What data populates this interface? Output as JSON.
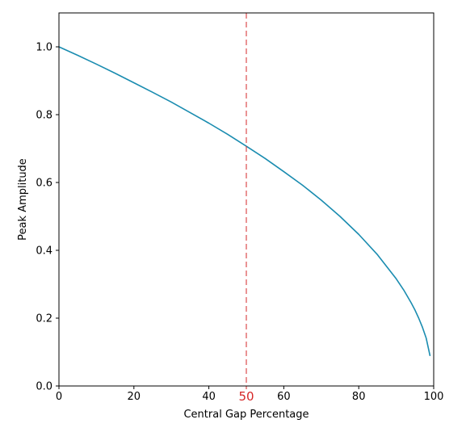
{
  "chart_data": {
    "type": "line",
    "title": "",
    "xlabel": "Central Gap Percentage",
    "ylabel": "Peak Amplitude",
    "xlim": [
      0,
      100
    ],
    "ylim": [
      0,
      1.1
    ],
    "grid": false,
    "x_ticks": [
      0,
      20,
      40,
      60,
      80,
      100
    ],
    "x_tick_labels": [
      "0",
      "20",
      "40",
      "60",
      "80",
      "100"
    ],
    "y_ticks": [
      0.0,
      0.2,
      0.4,
      0.6,
      0.8,
      1.0
    ],
    "y_tick_labels": [
      "0.0",
      "0.2",
      "0.4",
      "0.6",
      "0.8",
      "1.0"
    ],
    "series": [
      {
        "color": "#1a8cb0",
        "x": [
          0,
          5,
          10,
          15,
          20,
          25,
          30,
          35,
          40,
          45,
          50,
          55,
          60,
          65,
          70,
          75,
          80,
          85,
          90,
          92,
          94,
          95,
          96,
          97,
          98,
          99
        ],
        "y": [
          1.0,
          0.975,
          0.949,
          0.922,
          0.894,
          0.866,
          0.837,
          0.806,
          0.775,
          0.742,
          0.707,
          0.671,
          0.632,
          0.592,
          0.548,
          0.5,
          0.447,
          0.387,
          0.316,
          0.283,
          0.245,
          0.224,
          0.2,
          0.173,
          0.141,
          0.09
        ]
      }
    ],
    "annotations": [
      {
        "type": "vline",
        "x": 50,
        "color": "#d62728",
        "style": "dashed",
        "tick_label": "50"
      }
    ]
  }
}
